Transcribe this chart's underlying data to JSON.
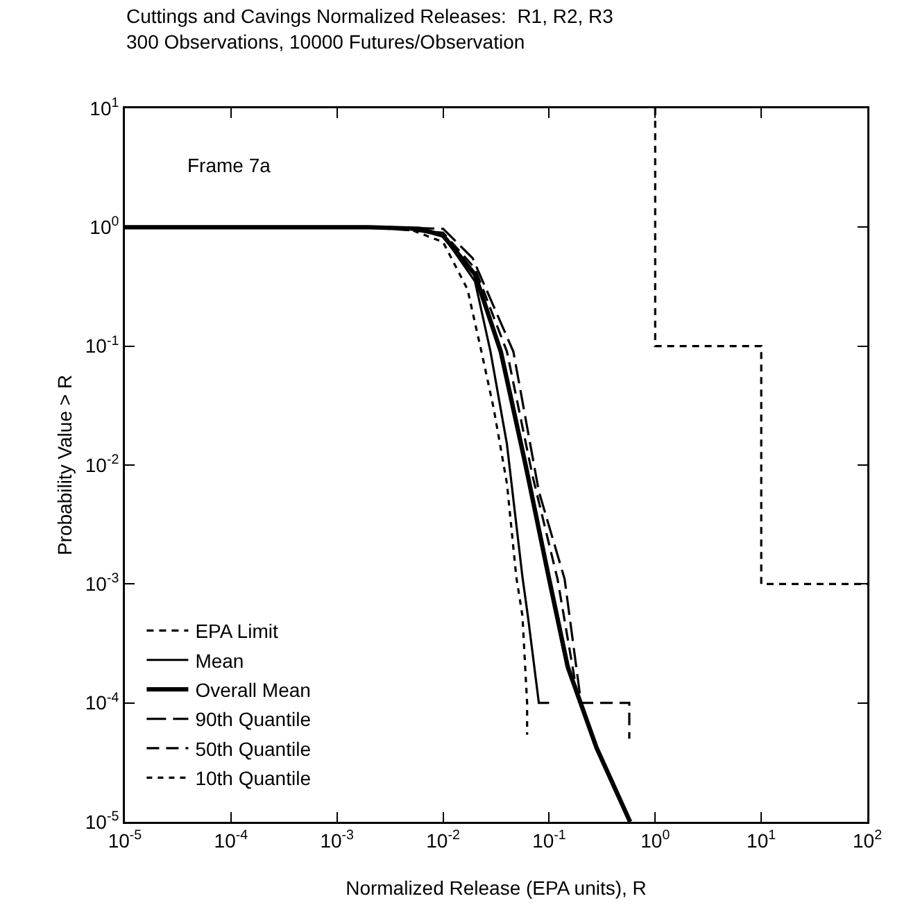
{
  "chart_data": {
    "type": "line",
    "title": "Cuttings and Cavings Normalized Releases:  R1, R2, R3",
    "subtitle": "300 Observations, 10000 Futures/Observation",
    "xlabel": "Normalized Release (EPA units), R",
    "ylabel": "Probability Value > R",
    "log": "xy",
    "grid": false,
    "legend": "bottom left",
    "marker": "none",
    "xlim": [
      1e-05,
      100
    ],
    "ylim": [
      1e-05,
      10
    ],
    "xticks": [
      {
        "value": 1e-05,
        "label": "10$^{-5}$"
      },
      {
        "value": 0.0001,
        "label": "10$^{-4}$"
      },
      {
        "value": 0.001,
        "label": "10$^{-3}$"
      },
      {
        "value": 0.01,
        "label": "10$^{-2}$"
      },
      {
        "value": 0.1,
        "label": "10$^{-1}$"
      },
      {
        "value": 1,
        "label": "10$^{0}$"
      },
      {
        "value": 10,
        "label": "10$^{1}$"
      },
      {
        "value": 100,
        "label": "10$^{2}$"
      }
    ],
    "yticks": [
      {
        "value": 1e-05,
        "label": "10$^{-5}$"
      },
      {
        "value": 0.0001,
        "label": "10$^{-4}$"
      },
      {
        "value": 0.001,
        "label": "10$^{-3}$"
      },
      {
        "value": 0.01,
        "label": "10$^{-2}$"
      },
      {
        "value": 0.1,
        "label": "10$^{-1}$"
      },
      {
        "value": 1,
        "label": "10$^{0}$"
      },
      {
        "value": 10,
        "label": "10$^{1}$"
      }
    ],
    "annotations": [
      "Frame 7a"
    ],
    "series": [
      {
        "name": "EPA Limit",
        "color": "#000000",
        "line_style": "dashed",
        "x": [
          1,
          1,
          10,
          10,
          100
        ],
        "values": [
          10,
          0.1,
          0.1,
          0.001,
          0.001
        ]
      },
      {
        "name": "Mean",
        "color": "#000000",
        "line_style": "solid",
        "x": [
          1e-05,
          0.002,
          0.005,
          0.01,
          0.02,
          0.028,
          0.04,
          0.056,
          0.063,
          0.08,
          0.1
        ],
        "values": [
          1,
          1,
          0.96,
          0.85,
          0.35,
          0.09,
          0.015,
          0.00115,
          0.00054,
          0.0001,
          0.0001
        ]
      },
      {
        "name": "Overall Mean",
        "color": "#000000",
        "line_style": "solid",
        "x": [
          1e-05,
          0.002,
          0.006,
          0.01,
          0.02,
          0.035,
          0.06,
          0.1,
          0.15,
          0.28,
          0.58
        ],
        "values": [
          1,
          1,
          0.97,
          0.85,
          0.4,
          0.09,
          0.01,
          0.0011,
          0.0002,
          4.2e-05,
          1e-05
        ]
      },
      {
        "name": "90th Quantile",
        "color": "#000000",
        "line_style": "dashed",
        "x": [
          1e-05,
          0.003,
          0.01,
          0.019,
          0.046,
          0.08,
          0.14,
          0.2
        ],
        "values": [
          1,
          1,
          0.97,
          0.55,
          0.09,
          0.006,
          0.0011,
          0.0001
        ]
      },
      {
        "name": "50th Quantile",
        "color": "#000000",
        "line_style": "dashed",
        "x": [
          1e-05,
          0.002,
          0.01,
          0.02,
          0.04,
          0.07,
          0.12,
          0.19,
          0.57,
          0.57
        ],
        "values": [
          1,
          1,
          0.9,
          0.45,
          0.09,
          0.008,
          0.0011,
          0.0001,
          0.0001,
          5e-05
        ]
      },
      {
        "name": "10th Quantile",
        "color": "#000000",
        "line_style": "dashed",
        "x": [
          1e-05,
          0.002,
          0.005,
          0.01,
          0.017,
          0.023,
          0.03,
          0.04,
          0.049,
          0.056,
          0.062,
          0.062
        ],
        "values": [
          1,
          1,
          0.95,
          0.75,
          0.3,
          0.09,
          0.03,
          0.007,
          0.00115,
          0.00054,
          0.0001,
          5.4e-05
        ]
      }
    ]
  }
}
